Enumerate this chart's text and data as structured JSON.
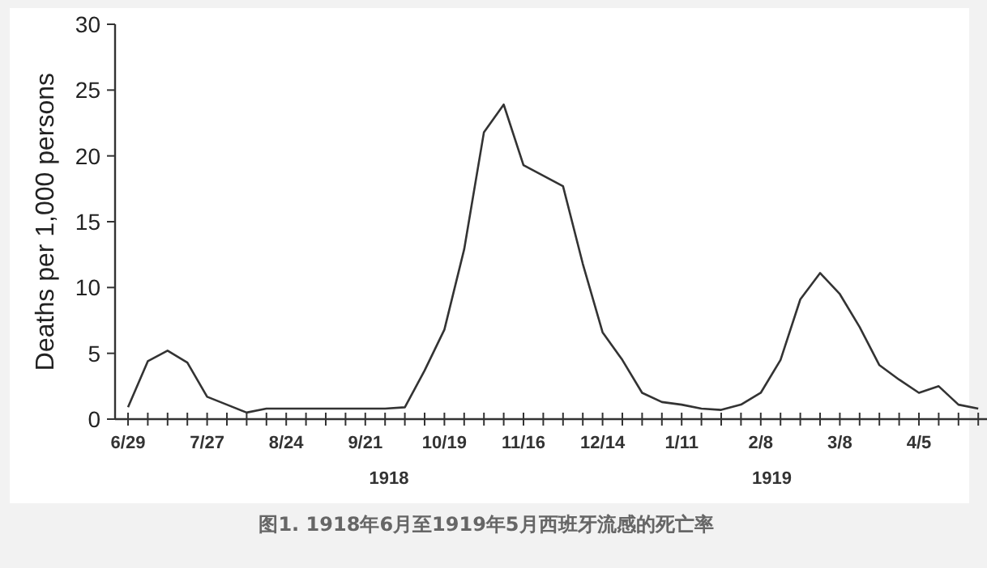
{
  "chart_data": {
    "type": "line",
    "ylabel": "Deaths per 1,000 persons",
    "categories": [
      "6/29",
      null,
      null,
      null,
      "7/27",
      null,
      null,
      null,
      "8/24",
      null,
      null,
      null,
      "9/21",
      null,
      null,
      null,
      "10/19",
      null,
      null,
      null,
      "11/16",
      null,
      null,
      null,
      "12/14",
      null,
      null,
      null,
      "1/11",
      null,
      null,
      null,
      "2/8",
      null,
      null,
      null,
      "3/8",
      null,
      null,
      null,
      "4/5",
      null,
      null,
      null,
      null
    ],
    "series": [
      {
        "color": "#333333",
        "values": [
          0.9,
          4.4,
          5.2,
          4.3,
          1.7,
          1.1,
          0.5,
          0.8,
          0.8,
          0.8,
          0.8,
          0.8,
          0.8,
          0.8,
          0.9,
          3.7,
          6.8,
          12.9,
          21.8,
          23.9,
          19.3,
          18.5,
          17.7,
          11.8,
          6.6,
          4.5,
          2.0,
          1.3,
          1.1,
          0.8,
          0.7,
          1.1,
          2.0,
          4.5,
          9.1,
          11.1,
          9.5,
          7.0,
          4.1,
          3.0,
          2.0,
          2.5,
          1.1,
          0.8,
          null
        ]
      }
    ],
    "ylim": [
      0,
      30
    ],
    "yticks": [
      0,
      5,
      10,
      15,
      20,
      25,
      30
    ],
    "grid": false,
    "marker": "none",
    "line_style": "solid",
    "annotations": [
      "1918",
      "1919",
      "图1. 1918年6月至1919年5月西班牙流感的死亡率"
    ]
  }
}
